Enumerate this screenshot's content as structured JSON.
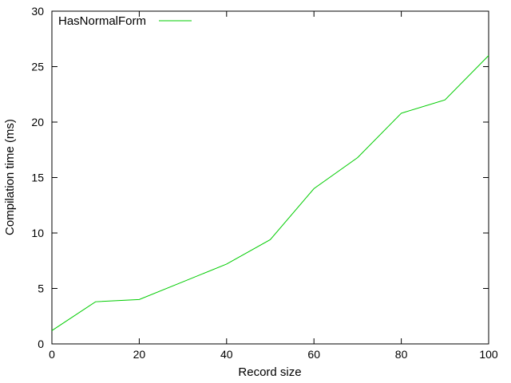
{
  "chart_data": {
    "type": "line",
    "title": "",
    "xlabel": "Record size",
    "ylabel": "Compilation time (ms)",
    "xlim": [
      0,
      100
    ],
    "ylim": [
      0,
      30
    ],
    "xticks": [
      0,
      20,
      40,
      60,
      80,
      100
    ],
    "yticks": [
      0,
      5,
      10,
      15,
      20,
      25,
      30
    ],
    "grid": false,
    "legend_position": "top-left",
    "series": [
      {
        "name": "HasNormalForm",
        "color": "#00cc00",
        "x": [
          0,
          10,
          20,
          30,
          40,
          50,
          60,
          70,
          80,
          90,
          100
        ],
        "y": [
          1.2,
          3.8,
          4.0,
          5.6,
          7.2,
          9.4,
          14.0,
          16.8,
          20.8,
          22.0,
          26.0
        ]
      }
    ]
  }
}
